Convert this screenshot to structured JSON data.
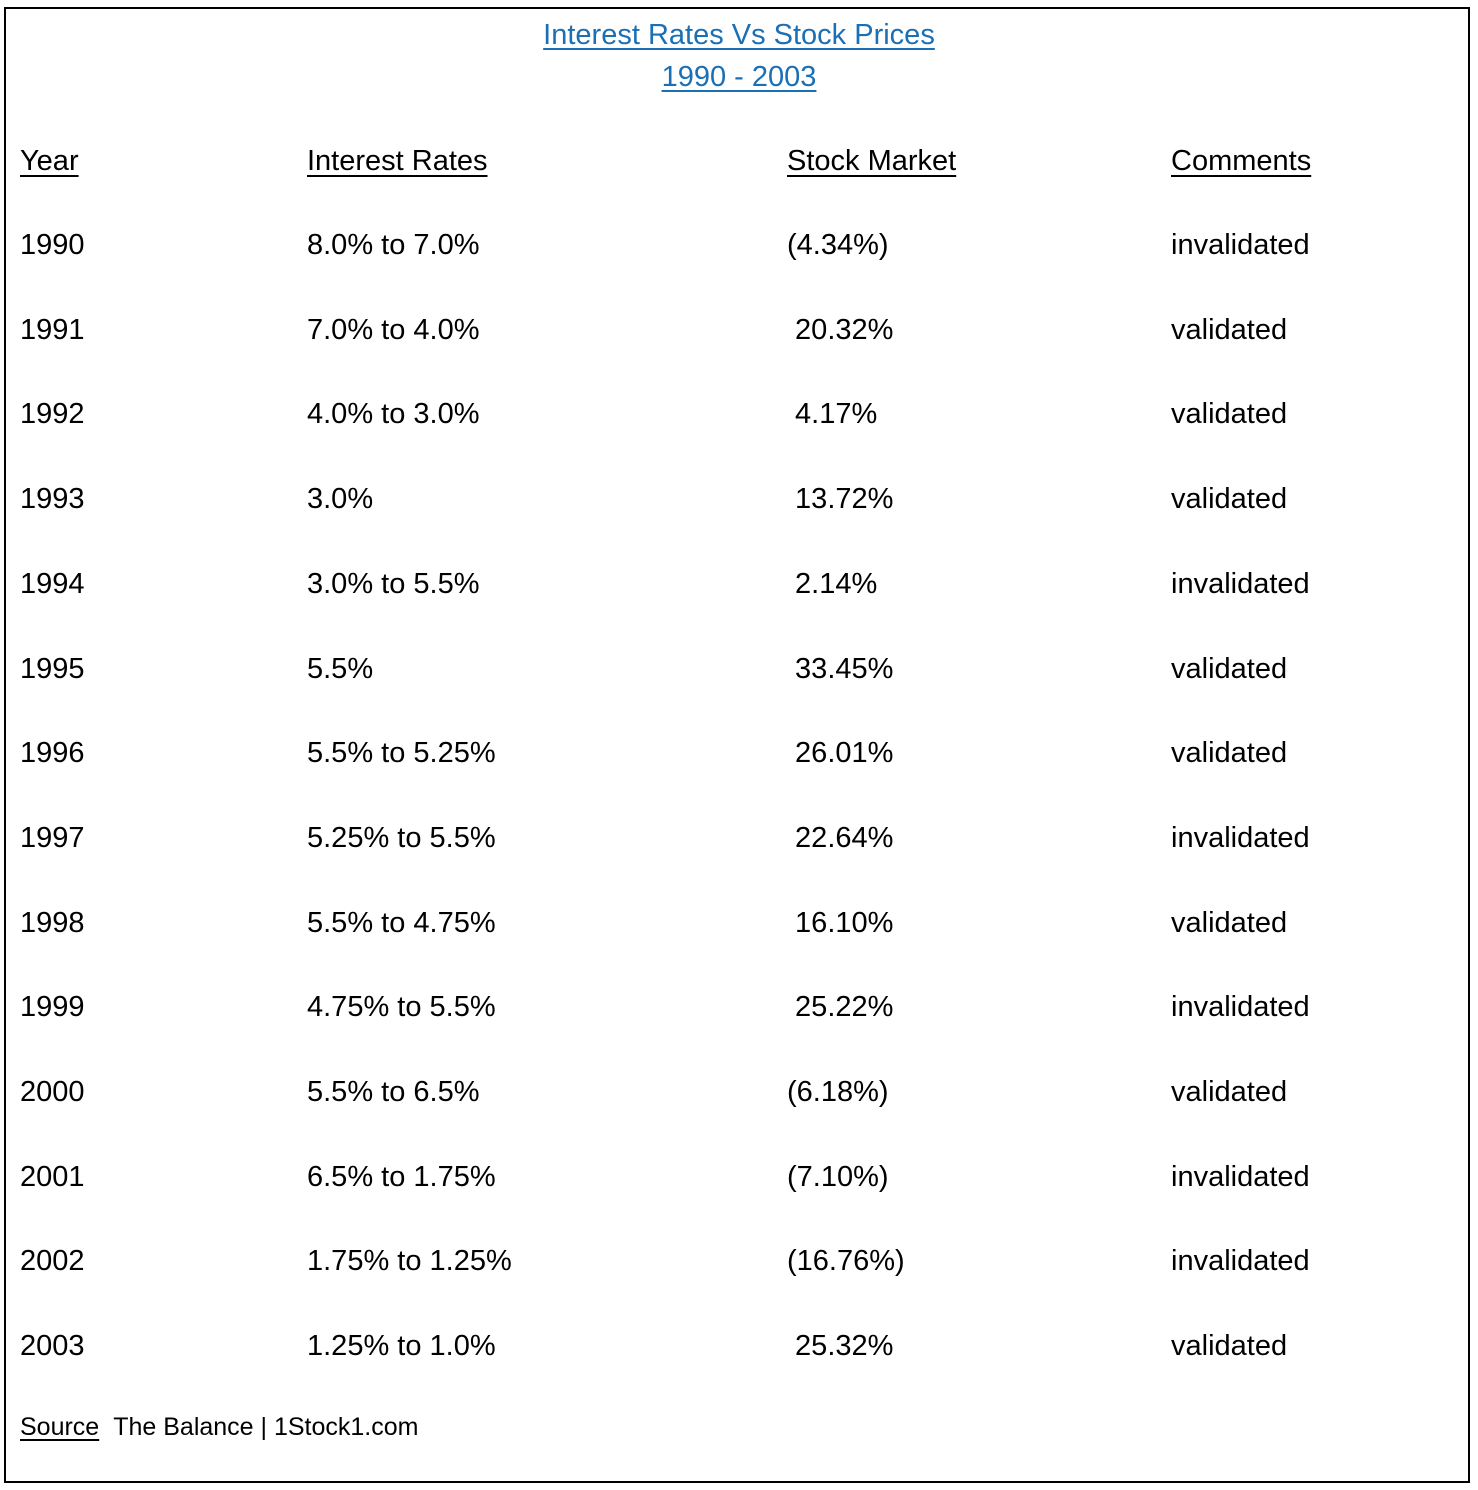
{
  "title": {
    "line1": "Interest Rates Vs Stock Prices",
    "line2": "1990 - 2003"
  },
  "columns": [
    "Year",
    "Interest Rates",
    "Stock Market",
    "Comments"
  ],
  "rows": [
    {
      "year": "1990",
      "rate": "8.0% to 7.0%",
      "stock": "(4.34%)",
      "comment": "invalidated"
    },
    {
      "year": "1991",
      "rate": "7.0% to 4.0%",
      "stock": " 20.32%",
      "comment": "validated"
    },
    {
      "year": "1992",
      "rate": "4.0% to 3.0%",
      "stock": " 4.17%",
      "comment": "validated"
    },
    {
      "year": "1993",
      "rate": "3.0%",
      "stock": " 13.72%",
      "comment": "validated"
    },
    {
      "year": "1994",
      "rate": "3.0% to 5.5%",
      "stock": " 2.14%",
      "comment": "invalidated"
    },
    {
      "year": "1995",
      "rate": "5.5%",
      "stock": " 33.45%",
      "comment": "validated"
    },
    {
      "year": "1996",
      "rate": "5.5% to 5.25%",
      "stock": " 26.01%",
      "comment": "validated"
    },
    {
      "year": "1997",
      "rate": "5.25% to 5.5%",
      "stock": " 22.64%",
      "comment": "invalidated"
    },
    {
      "year": "1998",
      "rate": "5.5% to 4.75%",
      "stock": " 16.10%",
      "comment": "validated"
    },
    {
      "year": "1999",
      "rate": "4.75% to 5.5%",
      "stock": " 25.22%",
      "comment": "invalidated"
    },
    {
      "year": "2000",
      "rate": "5.5% to 6.5%",
      "stock": "(6.18%)",
      "comment": "validated"
    },
    {
      "year": "2001",
      "rate": "6.5% to 1.75%",
      "stock": "(7.10%)",
      "comment": "invalidated"
    },
    {
      "year": "2002",
      "rate": "1.75% to 1.25%",
      "stock": "(16.76%)",
      "comment": "invalidated"
    },
    {
      "year": "2003",
      "rate": "1.25% to 1.0%",
      "stock": " 25.32%",
      "comment": "validated"
    }
  ],
  "source": {
    "label": "Source",
    "text": "The Balance | 1Stock1.com"
  },
  "colors": {
    "title": "#1a6fb5",
    "text": "#000000",
    "border": "#000000"
  }
}
